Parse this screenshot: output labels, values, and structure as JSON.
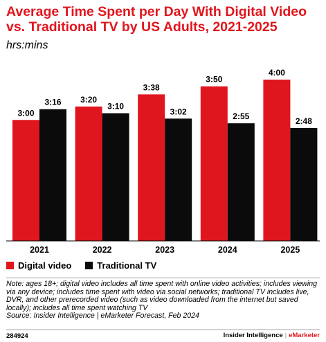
{
  "header": {
    "title": "Average Time Spent per Day With Digital Video vs. Traditional TV by US Adults, 2021-2025",
    "subtitle": "hrs:mins"
  },
  "colors": {
    "digital": "#e0161e",
    "traditional": "#0b0b0b",
    "accent": "#e0161e"
  },
  "chart_data": {
    "type": "bar",
    "categories": [
      "2021",
      "2022",
      "2023",
      "2024",
      "2025"
    ],
    "series": [
      {
        "name": "Digital video",
        "values": [
          180,
          200,
          218,
          230,
          240
        ],
        "labels": [
          "3:00",
          "3:20",
          "3:38",
          "3:50",
          "4:00"
        ]
      },
      {
        "name": "Traditional TV",
        "values": [
          196,
          190,
          182,
          175,
          168
        ],
        "labels": [
          "3:16",
          "3:10",
          "3:02",
          "2:55",
          "2:48"
        ]
      }
    ],
    "value_unit": "minutes",
    "ylim": [
      0,
      240
    ],
    "grid": false,
    "legend_position": "bottom-left"
  },
  "legend": {
    "digital_label": "Digital video",
    "traditional_label": "Traditional TV"
  },
  "note": {
    "text": "Note: ages 18+; digital video includes all time spent with online video activities; includes viewing via any device; includes time spent with video via social networks; traditional TV includes live, DVR, and other prerecorded video (such as video downloaded from the internet but saved locally); includes all time spent watching TV",
    "source": "Source: Insider Intelligence | eMarketer Forecast, Feb 2024"
  },
  "footer": {
    "chart_id": "284924",
    "brand_primary": "Insider Intelligence",
    "brand_separator": "|",
    "brand_secondary": "eMarketer"
  }
}
